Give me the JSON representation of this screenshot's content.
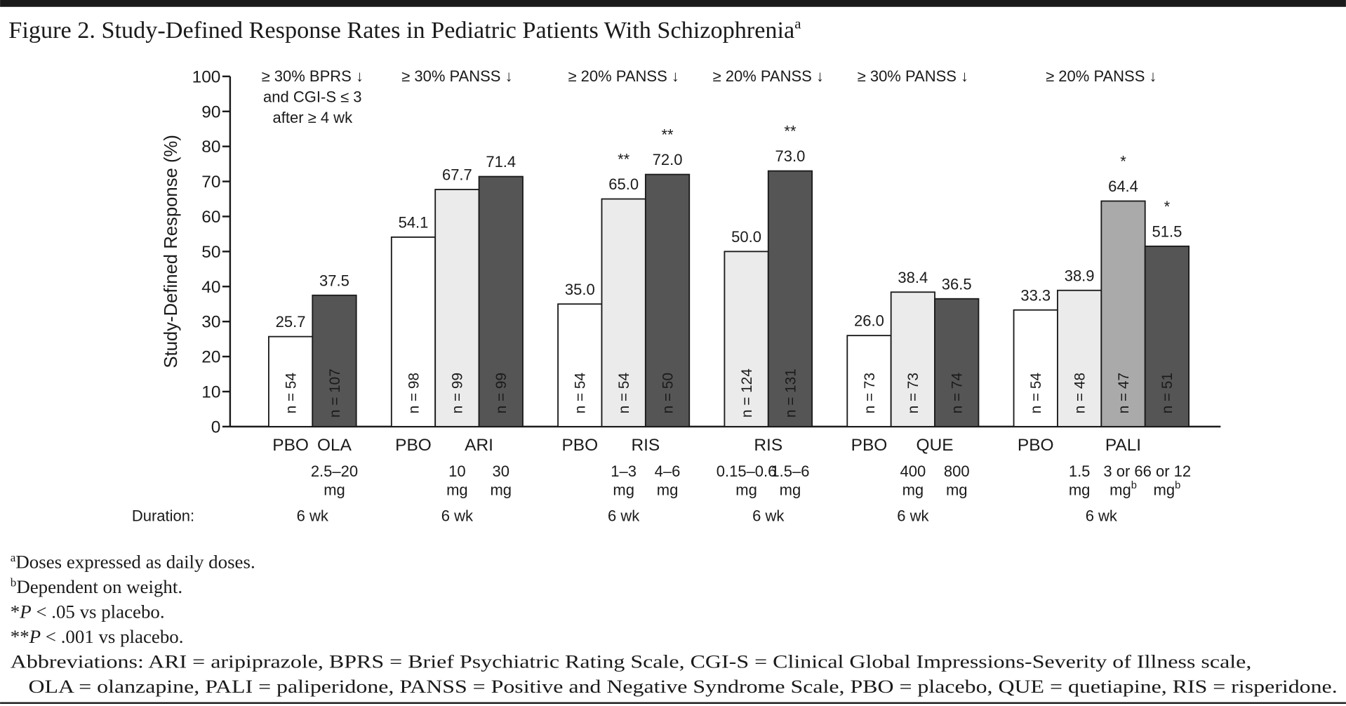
{
  "chart_data": {
    "type": "grouped-bar",
    "title": "Figure 2. Study-Defined Response Rates in Pediatric Patients With Schizophrenia",
    "title_sup": "a",
    "y_label": "Study-Defined Response (%)",
    "ylim": [
      0,
      100
    ],
    "yticks": [
      0,
      10,
      20,
      30,
      40,
      50,
      60,
      70,
      80,
      90,
      100
    ],
    "duration_label": "Duration:",
    "groups": [
      {
        "header": [
          "≥ 30% BPRS ↓",
          "and CGI-S ≤ 3",
          "after ≥ 4 wk"
        ],
        "placebo": "PBO",
        "drug": "OLA",
        "duration": "6 wk",
        "bars": [
          {
            "value": 25.7,
            "value_label": "25.7",
            "n": "n = 54",
            "color": "#ffffff"
          },
          {
            "value": 37.5,
            "value_label": "37.5",
            "n": "n = 107",
            "color": "#555555",
            "dose": [
              "2.5–20",
              "mg"
            ]
          }
        ]
      },
      {
        "header": [
          "≥ 30% PANSS ↓"
        ],
        "placebo": "PBO",
        "drug": "ARI",
        "duration": "6 wk",
        "bars": [
          {
            "value": 54.1,
            "value_label": "54.1",
            "n": "n = 98",
            "color": "#ffffff"
          },
          {
            "value": 67.7,
            "value_label": "67.7",
            "n": "n = 99",
            "color": "#ebebeb",
            "dose": [
              "10",
              "mg"
            ]
          },
          {
            "value": 71.4,
            "value_label": "71.4",
            "n": "n = 99",
            "color": "#555555",
            "dose": [
              "30",
              "mg"
            ]
          }
        ]
      },
      {
        "header": [
          "≥ 20% PANSS ↓"
        ],
        "placebo": "PBO",
        "drug": "RIS",
        "duration": "6 wk",
        "bars": [
          {
            "value": 35.0,
            "value_label": "35.0",
            "n": "n = 54",
            "color": "#ffffff"
          },
          {
            "value": 65.0,
            "value_label": "65.0",
            "sig": "**",
            "n": "n = 54",
            "color": "#ebebeb",
            "dose": [
              "1–3",
              "mg"
            ]
          },
          {
            "value": 72.0,
            "value_label": "72.0",
            "sig": "**",
            "n": "n = 50",
            "color": "#555555",
            "dose": [
              "4–6",
              "mg"
            ]
          }
        ]
      },
      {
        "header": [
          "≥ 20% PANSS ↓"
        ],
        "drug": "RIS",
        "duration": "6 wk",
        "bars": [
          {
            "value": 50.0,
            "value_label": "50.0",
            "n": "n = 124",
            "color": "#ebebeb",
            "dose": [
              "0.15–0.6",
              "mg"
            ]
          },
          {
            "value": 73.0,
            "value_label": "73.0",
            "sig": "**",
            "n": "n = 131",
            "color": "#555555",
            "dose": [
              "1.5–6",
              "mg"
            ]
          }
        ]
      },
      {
        "header": [
          "≥ 30% PANSS ↓"
        ],
        "placebo": "PBO",
        "drug": "QUE",
        "duration": "6 wk",
        "bars": [
          {
            "value": 26.0,
            "value_label": "26.0",
            "n": "n = 73",
            "color": "#ffffff"
          },
          {
            "value": 38.4,
            "value_label": "38.4",
            "n": "n = 73",
            "color": "#ebebeb",
            "dose": [
              "400",
              "mg"
            ]
          },
          {
            "value": 36.5,
            "value_label": "36.5",
            "n": "n = 74",
            "color": "#555555",
            "dose": [
              "800",
              "mg"
            ]
          }
        ]
      },
      {
        "header": [
          "≥ 20% PANSS ↓"
        ],
        "placebo": "PBO",
        "drug": "PALI",
        "duration": "6 wk",
        "bars": [
          {
            "value": 33.3,
            "value_label": "33.3",
            "n": "n = 54",
            "color": "#ffffff"
          },
          {
            "value": 38.9,
            "value_label": "38.9",
            "n": "n = 48",
            "color": "#ebebeb",
            "dose": [
              "1.5",
              "mg"
            ]
          },
          {
            "value": 64.4,
            "value_label": "64.4",
            "sig": "*",
            "n": "n = 47",
            "color": "#aaaaaa",
            "dose": [
              "3 or 6",
              "mg"
            ],
            "dose_sup": "b"
          },
          {
            "value": 51.5,
            "value_label": "51.5",
            "sig": "*",
            "n": "n = 51",
            "color": "#555555",
            "dose": [
              "6 or 12",
              "mg"
            ],
            "dose_sup": "b"
          }
        ]
      }
    ],
    "footnotes": [
      {
        "sup": "a",
        "text": "Doses expressed as daily doses."
      },
      {
        "sup": "b",
        "text": "Dependent on weight."
      },
      {
        "prefix": "*",
        "italic": "P",
        "text": " < .05 vs placebo."
      },
      {
        "prefix": "**",
        "italic": "P",
        "text": " < .001 vs placebo."
      }
    ],
    "abbreviations": [
      "Abbreviations: ARI = aripiprazole, BPRS = Brief Psychiatric Rating Scale, CGI-S = Clinical Global Impressions-Severity of Illness scale,",
      "OLA = olanzapine, PALI = paliperidone, PANSS = Positive and Negative Syndrome Scale, PBO = placebo, QUE = quetiapine, RIS = risperidone."
    ]
  }
}
